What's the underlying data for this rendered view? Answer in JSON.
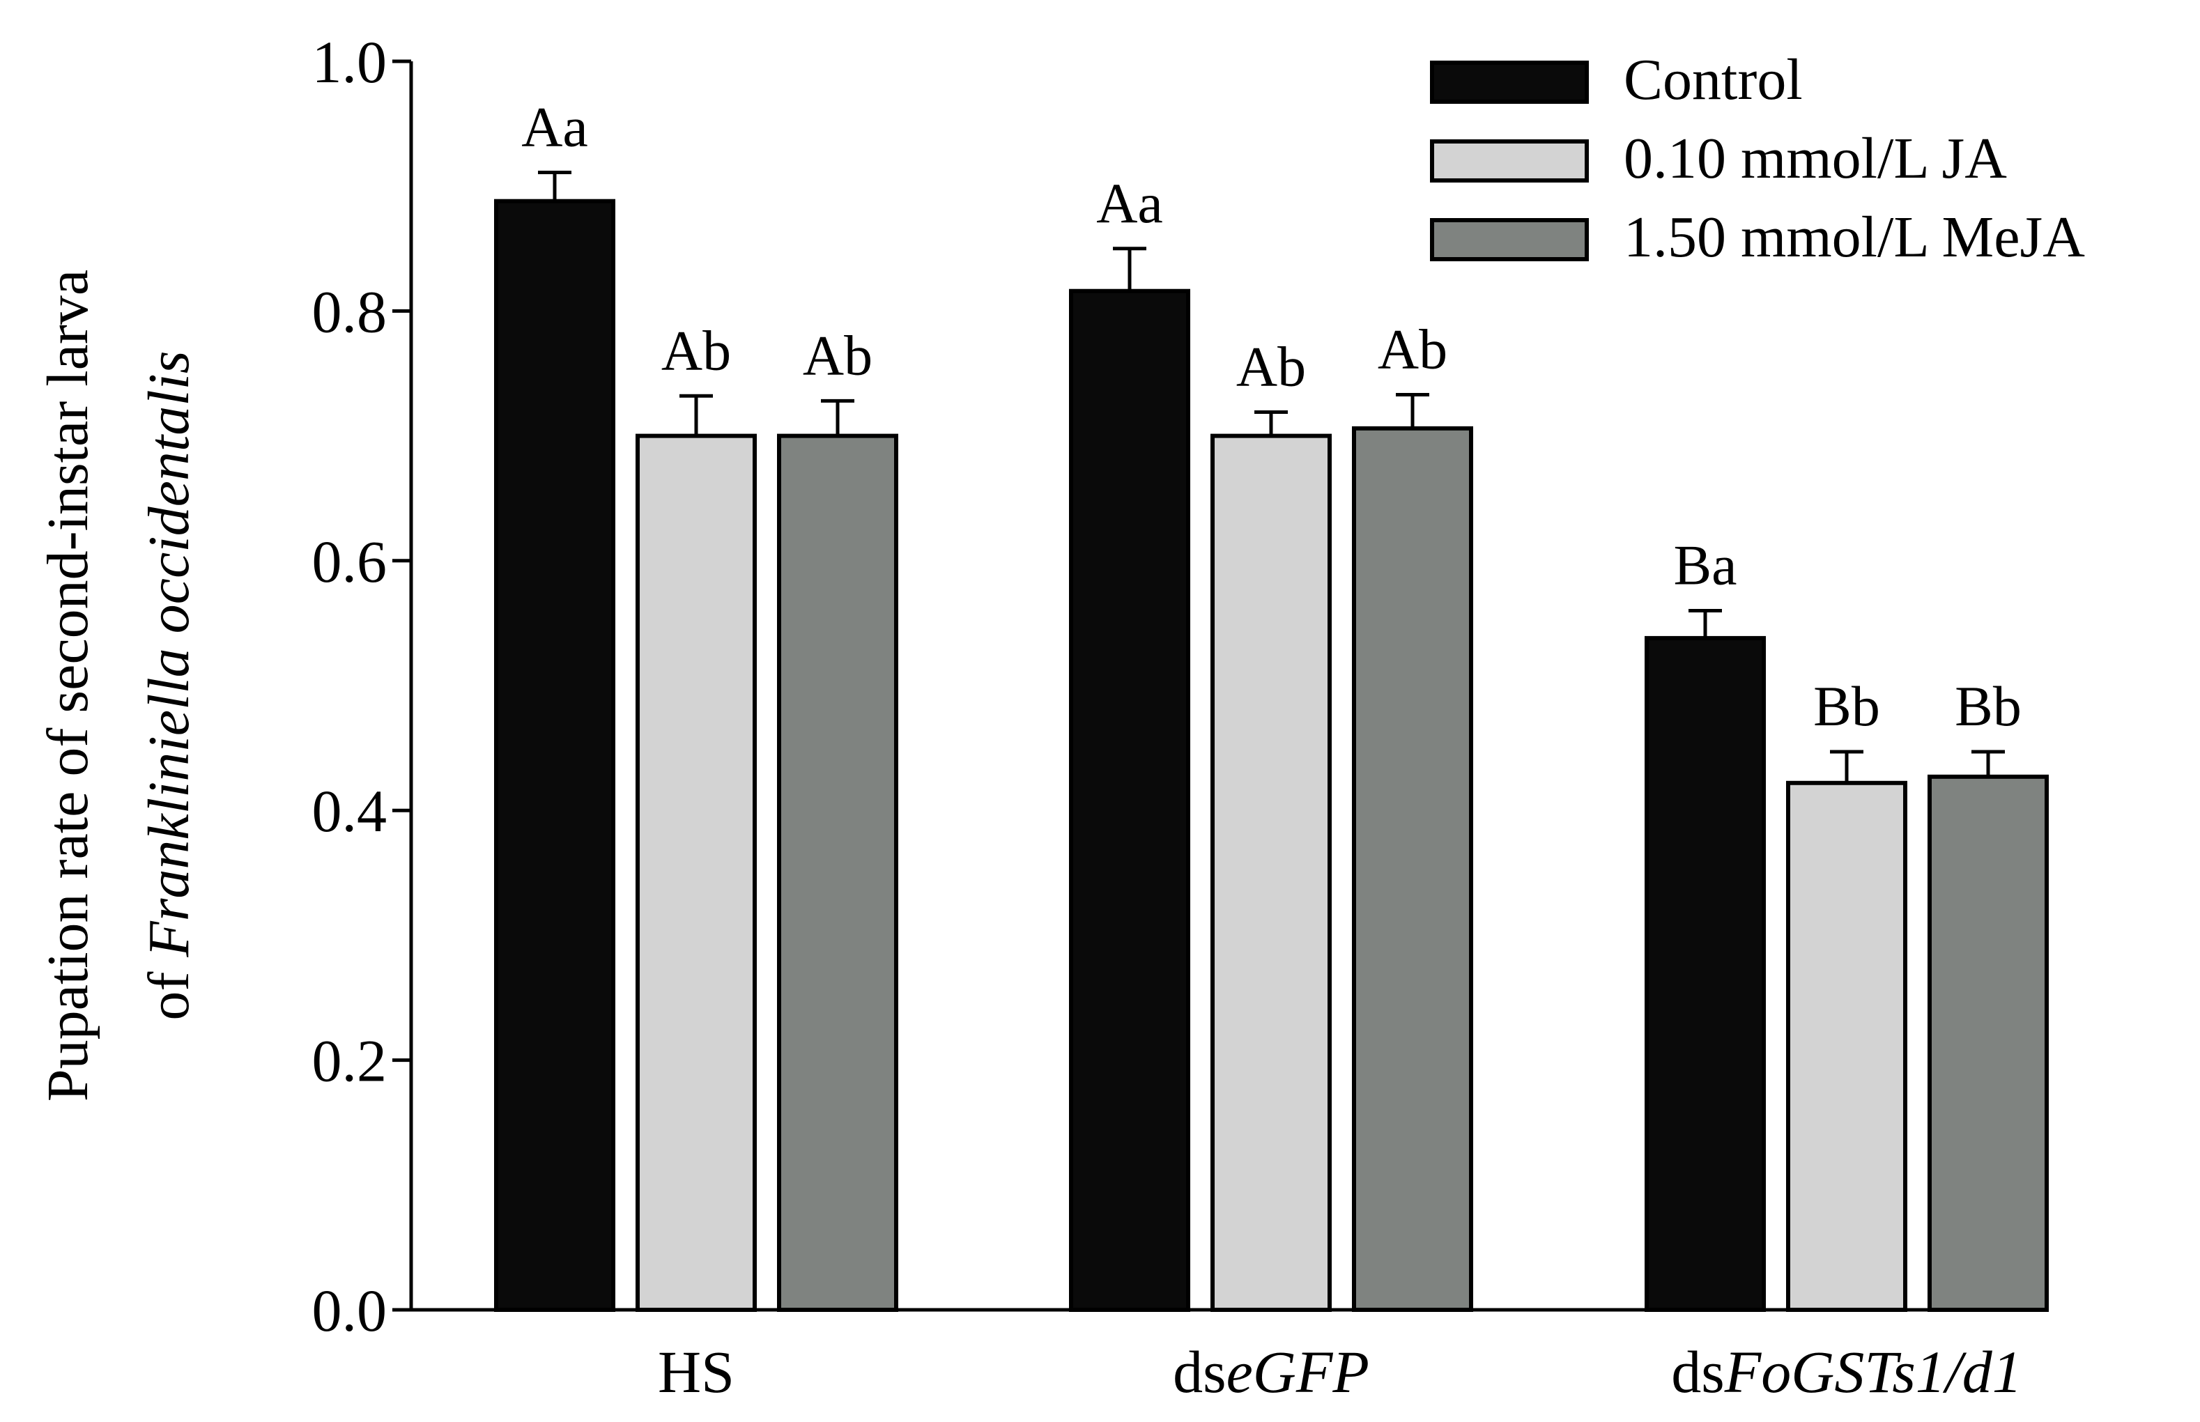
{
  "chart_data": {
    "type": "bar",
    "title": "",
    "xlabel": "",
    "ylabel_line1": "Pupation rate of second-instar larva",
    "ylabel_line2_prefix": "of ",
    "ylabel_line2_italic": "Frankliniella occidentalis",
    "ylim": [
      0,
      1.0
    ],
    "yticks": [
      "0.0",
      "0.2",
      "0.4",
      "0.6",
      "0.8",
      "1.0"
    ],
    "categories": [
      {
        "prefix": "HS",
        "italic": ""
      },
      {
        "prefix": "ds",
        "italic": "eGFP"
      },
      {
        "prefix": "ds",
        "italic": "FoGSTs1/d1"
      }
    ],
    "series": [
      {
        "name": "Control",
        "color": "#0a0a0a",
        "values": [
          0.888,
          0.816,
          0.538
        ],
        "errors": [
          0.023,
          0.034,
          0.022
        ],
        "labels": [
          "Aa",
          "Aa",
          "Ba"
        ]
      },
      {
        "name": "0.10 mmol/L  JA",
        "color": "#d3d3d3",
        "values": [
          0.7,
          0.7,
          0.422
        ],
        "errors": [
          0.032,
          0.019,
          0.025
        ],
        "labels": [
          "Ab",
          "Ab",
          "Bb"
        ]
      },
      {
        "name": "1.50 mmol/L  MeJA",
        "color": "#7f8380",
        "values": [
          0.7,
          0.706,
          0.427
        ],
        "errors": [
          0.028,
          0.027,
          0.02
        ],
        "labels": [
          "Ab",
          "Ab",
          "Bb"
        ]
      }
    ],
    "legend_position": "top-right",
    "grid": false
  }
}
